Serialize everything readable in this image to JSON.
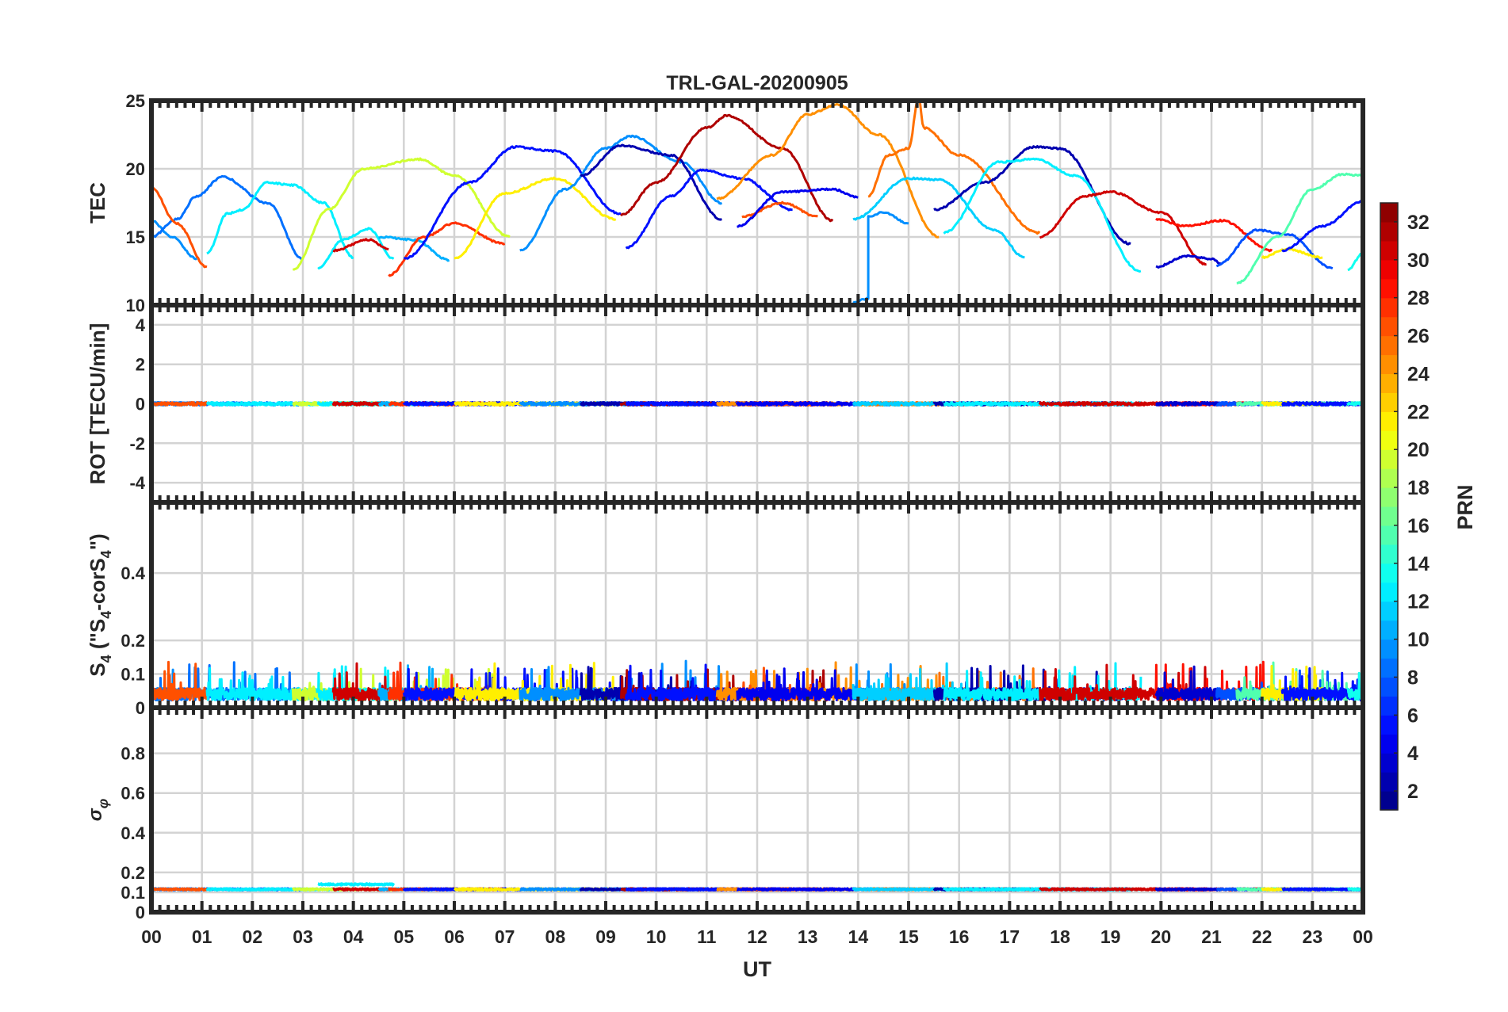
{
  "chart_data": {
    "type": "line",
    "title": "TRL-GAL-20200905",
    "xlabel": "UT",
    "xlim": [
      0,
      24
    ],
    "x_tick_labels": [
      "00",
      "01",
      "02",
      "03",
      "04",
      "05",
      "06",
      "07",
      "08",
      "09",
      "10",
      "11",
      "12",
      "13",
      "14",
      "15",
      "16",
      "17",
      "18",
      "19",
      "20",
      "21",
      "22",
      "23",
      "00"
    ],
    "grid": true,
    "colorbar": {
      "label": "PRN",
      "range": [
        1,
        32
      ],
      "colormap": "jet",
      "ticks": [
        2,
        4,
        6,
        8,
        10,
        12,
        14,
        16,
        18,
        20,
        22,
        24,
        26,
        28,
        30,
        32
      ],
      "placement": "right"
    },
    "panels": [
      {
        "id": "tec",
        "ylabel": "TEC",
        "ylim": [
          10,
          25
        ],
        "yticks": [
          10,
          15,
          20,
          25
        ],
        "ytick_labels": [
          "10",
          "15",
          "20",
          "25"
        ]
      },
      {
        "id": "rot",
        "ylabel": "ROT [TECU/min]",
        "ylim": [
          -5,
          5
        ],
        "yticks": [
          -4,
          -2,
          0,
          2,
          4
        ],
        "ytick_labels": [
          "-4",
          "-2",
          "0",
          "2",
          "4"
        ],
        "mean": 0,
        "noise": 0.07
      },
      {
        "id": "s4",
        "ylabel_parts": [
          {
            "t": "S"
          },
          {
            "t": "4",
            "sub": true
          },
          {
            "t": " (\"S"
          },
          {
            "t": "4",
            "sub": true
          },
          {
            "t": "-corS"
          },
          {
            "t": "4",
            "sub": true
          },
          {
            "t": "\")"
          }
        ],
        "ylim": [
          0,
          0.61
        ],
        "yticks": [
          0,
          0.1,
          0.2,
          0.4
        ],
        "ytick_labels": [
          "0",
          "0.1",
          "0.2",
          "0.4"
        ],
        "mean": 0.04,
        "noise": 0.018,
        "spike_max": 0.17
      },
      {
        "id": "sigma",
        "ylabel_parts": [
          {
            "t": "σ"
          },
          {
            "t": "φ",
            "sub": true
          }
        ],
        "ylim": [
          0,
          1.03
        ],
        "yticks": [
          0,
          0.1,
          0.2,
          0.4,
          0.6,
          0.8
        ],
        "ytick_labels": [
          "0",
          "0.1",
          "0.2",
          "0.4",
          "0.6",
          "0.8"
        ],
        "mean": 0.115,
        "noise": 0.004
      }
    ],
    "tec_arcs": [
      {
        "prn": 9,
        "t": [
          0,
          0.4,
          0.9
        ],
        "v": [
          16.2,
          15,
          13.4
        ]
      },
      {
        "prn": 8,
        "t": [
          0,
          0.5,
          0.9,
          1.4,
          2.3,
          3.0
        ],
        "v": [
          15,
          16.3,
          18,
          19.4,
          17.5,
          13.4
        ]
      },
      {
        "prn": 26,
        "t": [
          0,
          0.5,
          1.1
        ],
        "v": [
          18.6,
          16,
          12.8
        ]
      },
      {
        "prn": 12,
        "t": [
          1.1,
          1.5,
          1.8,
          2.3,
          2.8,
          3.4,
          4.0
        ],
        "v": [
          13.8,
          16.7,
          17,
          19,
          18.8,
          17.5,
          13.5
        ]
      },
      {
        "prn": 19,
        "t": [
          2.8,
          3.5,
          4.2,
          5.3,
          6.0,
          7.1
        ],
        "v": [
          12.6,
          17,
          20,
          20.7,
          19.5,
          15
        ]
      },
      {
        "prn": 12,
        "t": [
          3.3,
          3.8,
          4.3,
          4.8
        ],
        "v": [
          12.7,
          14.8,
          15.6,
          13.4
        ]
      },
      {
        "prn": 30,
        "t": [
          3.6,
          4.3,
          4.7
        ],
        "v": [
          14,
          14.8,
          14.1
        ]
      },
      {
        "prn": 10,
        "t": [
          4.5,
          5.2,
          5.9
        ],
        "v": [
          15,
          14.8,
          13.3
        ]
      },
      {
        "prn": 27,
        "t": [
          4.7,
          5.4,
          6.0,
          7.0
        ],
        "v": [
          12.2,
          15,
          16,
          14.5
        ]
      },
      {
        "prn": 5,
        "t": [
          5.0,
          6.3,
          7.2,
          8.0,
          9.3
        ],
        "v": [
          13.4,
          19,
          21.6,
          21.3,
          16.7
        ]
      },
      {
        "prn": 21,
        "t": [
          6.0,
          7.0,
          8.0,
          9.2
        ],
        "v": [
          13.4,
          18.2,
          19.3,
          16.3
        ]
      },
      {
        "prn": 9,
        "t": [
          7.3,
          8.2,
          9.0,
          9.5,
          10.5,
          11.3
        ],
        "v": [
          14,
          18.5,
          21.5,
          22.4,
          20.5,
          17.5
        ]
      },
      {
        "prn": 2,
        "t": [
          8.5,
          9.3,
          10.3,
          11.3
        ],
        "v": [
          19.5,
          21.7,
          21,
          16.3
        ]
      },
      {
        "prn": 31,
        "t": [
          9.3,
          10.0,
          11.0,
          11.4,
          12.5,
          13.5
        ],
        "v": [
          16.6,
          19,
          23,
          23.9,
          21.5,
          16.2
        ]
      },
      {
        "prn": 5,
        "t": [
          9.4,
          10.3,
          10.9,
          11.7,
          12.7
        ],
        "v": [
          14.2,
          18,
          19.9,
          19.3,
          17
        ]
      },
      {
        "prn": 24,
        "t": [
          11.2,
          12.3,
          13.0,
          13.6,
          14.4,
          15.6
        ],
        "v": [
          17.8,
          21,
          24,
          24.7,
          22.5,
          15
        ]
      },
      {
        "prn": 26,
        "t": [
          11.7,
          12.5,
          13.2
        ],
        "v": [
          16.5,
          17.5,
          16.5
        ]
      },
      {
        "prn": 4,
        "t": [
          11.6,
          12.5,
          13.5,
          14.0
        ],
        "v": [
          15.8,
          18.3,
          18.5,
          17.9
        ]
      },
      {
        "prn": 9,
        "t": [
          13.9,
          14.2,
          14.2,
          14.5,
          15.0
        ],
        "v": [
          10.2,
          10.5,
          16.5,
          16.8,
          16
        ]
      },
      {
        "prn": 25,
        "t": [
          14.2,
          14.6,
          15.0,
          15.2,
          15.3,
          16.0,
          17.6
        ],
        "v": [
          18,
          21,
          21.5,
          25.2,
          23,
          21,
          15.3
        ]
      },
      {
        "prn": 11,
        "t": [
          13.9,
          15.0,
          15.6,
          16.7,
          17.3
        ],
        "v": [
          16.3,
          19.3,
          19.2,
          15.5,
          13.5
        ]
      },
      {
        "prn": 2,
        "t": [
          15.5,
          16.5,
          17.5,
          18.0,
          19.4
        ],
        "v": [
          17,
          19,
          21.6,
          21.5,
          14.5
        ]
      },
      {
        "prn": 12,
        "t": [
          15.7,
          16.8,
          17.5,
          18.3,
          19.6
        ],
        "v": [
          15.3,
          20.5,
          20.7,
          19.5,
          12.5
        ]
      },
      {
        "prn": 30,
        "t": [
          17.6,
          18.5,
          19.0,
          20.0,
          20.9
        ],
        "v": [
          15,
          18,
          18.3,
          16.8,
          13
        ]
      },
      {
        "prn": 28,
        "t": [
          19.9,
          20.5,
          21.2,
          22.2
        ],
        "v": [
          16.3,
          15.8,
          16.2,
          14
        ]
      },
      {
        "prn": 3,
        "t": [
          19.9,
          20.5,
          21.0,
          21.2
        ],
        "v": [
          12.8,
          13.6,
          13.4,
          13
        ]
      },
      {
        "prn": 7,
        "t": [
          21.1,
          21.9,
          22.5,
          23.4
        ],
        "v": [
          12.9,
          15.5,
          15.2,
          12.7
        ]
      },
      {
        "prn": 15,
        "t": [
          21.5,
          22.3,
          23.0,
          23.6,
          24.0
        ],
        "v": [
          11.6,
          15,
          18.5,
          19.6,
          19.5
        ]
      },
      {
        "prn": 21,
        "t": [
          22.0,
          22.5,
          23.2
        ],
        "v": [
          13.5,
          14.1,
          13.5
        ]
      },
      {
        "prn": 5,
        "t": [
          22.4,
          23.2,
          24.0
        ],
        "v": [
          14,
          15.8,
          17.6
        ]
      },
      {
        "prn": 13,
        "t": [
          23.7,
          24.0
        ],
        "v": [
          12.6,
          13.8
        ]
      }
    ],
    "sigma_elevated_arcs": [
      {
        "prn": 12,
        "t": [
          3.3,
          5.9
        ],
        "v": 0.14
      },
      {
        "prn": 11,
        "t": [
          15.6,
          19.6
        ],
        "v": 0.14
      }
    ]
  }
}
